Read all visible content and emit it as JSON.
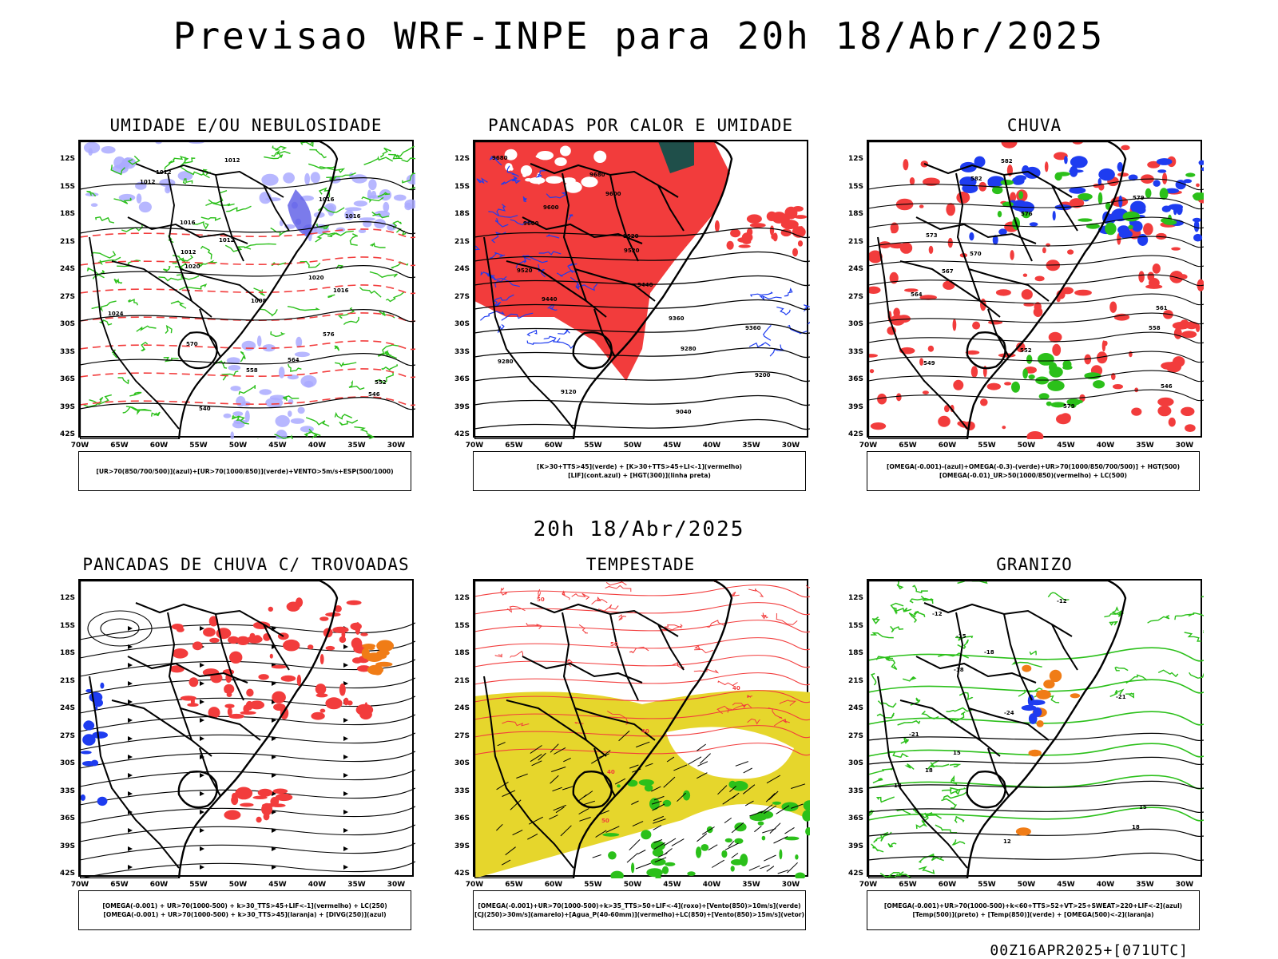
{
  "title": "Previsao WRF-INPE  para 20h 18/Abr/2025",
  "mid_title": "20h 18/Abr/2025",
  "footer": "00Z16APR2025+[071UTC]",
  "lat_labels": [
    "12S",
    "15S",
    "18S",
    "21S",
    "24S",
    "27S",
    "30S",
    "33S",
    "36S",
    "39S",
    "42S"
  ],
  "lon_labels": [
    "70W",
    "65W",
    "60W",
    "55W",
    "50W",
    "45W",
    "40W",
    "35W",
    "30W"
  ],
  "colors": {
    "red": "#f23c3c",
    "green": "#2bc01a",
    "blue": "#1e3cf0",
    "lavender": "#aaaaff",
    "yellow": "#e6d62c",
    "orange": "#f07c16",
    "darkteal": "#1f4f4a",
    "black": "#000000"
  },
  "panels": [
    {
      "title": "UMIDADE E/OU NEBULOSIDADE",
      "legend": [
        "[UR>70(850/700/500)](azul)+[UR>70(1000/850)](verde)+VENTO>5m/s+ESP(500/1000)"
      ],
      "labels": [
        "1012",
        "1012",
        "1012",
        "1016",
        "1016",
        "1016",
        "1012",
        "1012",
        "1020",
        "1020",
        "1016",
        "1008",
        "1024",
        "576",
        "570",
        "564",
        "558",
        "552",
        "546",
        "540"
      ]
    },
    {
      "title": "PANCADAS POR CALOR E UMIDADE",
      "legend": [
        "[K>30+TTS>45](verde) + [K>30+TTS>45+LI<-1](vermelho)",
        "[LIF](cont.azul) + [HGT(300)](linha preta)"
      ],
      "labels": [
        "9680",
        "9680",
        "9600",
        "9600",
        "9600",
        "9520",
        "9520",
        "9520",
        "9440",
        "9440",
        "9360",
        "9360",
        "9280",
        "9280",
        "9200",
        "9120",
        "9040"
      ]
    },
    {
      "title": "CHUVA",
      "legend": [
        "[OMEGA(-0.001)-(azul)+OMEGA(-0.3)-(verde)+UR>70(1000/850/700/500)] + HGT(500)",
        "[OMEGA(-0.01)_UR>50(1000/850)(vermelho) + LC(500)"
      ],
      "labels": [
        "582",
        "582",
        "579",
        "576",
        "573",
        "570",
        "567",
        "564",
        "561",
        "558",
        "552",
        "549",
        "546",
        "579"
      ]
    },
    {
      "title": "PANCADAS DE CHUVA C/ TROVOADAS",
      "legend": [
        "[OMEGA(-0.001) + UR>70(1000-500) + k>30_TTS>45+LIF<-1](vermelho) + LC(250)",
        "[OMEGA(-0.001) + UR>70(1000-500) + k>30_TTS>45](laranja) + [DIVG(250)](azul)"
      ],
      "labels": []
    },
    {
      "title": "TEMPESTADE",
      "legend": [
        "[OMEGA(-0.001)+UR>70(1000-500)+k>35_TTS>50+LIF<-4](roxo)+[Vento(850)>10m/s](verde)",
        "[CJ(250)>30m/s](amarelo)+[Agua_P(40-60mm)](vermelho)+LC(850)+[Vento(850)>15m/s](vetor)"
      ],
      "labels": [
        "50",
        "50",
        "40",
        "40",
        "40",
        "50"
      ]
    },
    {
      "title": "GRANIZO",
      "legend": [
        "[OMEGA(-0.001)+UR>70(1000-500)+k<60+TTS>52+VT>25+SWEAT>220+LIF<-2](azul)",
        "[Temp(500)](preto) + [Temp(850)](verde) + [OMEGA(500)<-2](laranja)"
      ],
      "labels": [
        "-12",
        "-12",
        "-15",
        "-18",
        "-18",
        "-21",
        "-24",
        "-21",
        "15",
        "18",
        "18",
        "15",
        "18",
        "12"
      ]
    }
  ]
}
